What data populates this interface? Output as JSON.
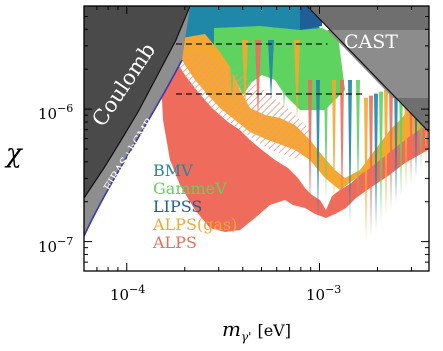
{
  "chart_data": {
    "type": "area",
    "xscale": "log",
    "yscale": "log",
    "xlim": [
      6e-05,
      0.0037
    ],
    "ylim": [
      6e-08,
      6e-06
    ],
    "xlabel_symbol": "m",
    "xlabel_sub": "γ'",
    "xlabel_unit": "[eV]",
    "ylabel": "χ",
    "xticks": [
      {
        "value": 0.0001,
        "base": "10",
        "exp": "−4"
      },
      {
        "value": 0.001,
        "base": "10",
        "exp": "−3"
      }
    ],
    "yticks": [
      {
        "value": 1e-06,
        "base": "10",
        "exp": "−6"
      },
      {
        "value": 1e-07,
        "base": "10",
        "exp": "−7"
      }
    ],
    "regions": [
      {
        "name": "Coulomb",
        "color": "#4a4a4a"
      },
      {
        "name": "FIRAS+hCMB",
        "color": "#8e8e8e",
        "edge_color": "#3a3aaa"
      },
      {
        "name": "CAST",
        "color": "#6f6f6f",
        "band_color": "#8c8c8c"
      }
    ],
    "series": [
      {
        "name": "BMV",
        "color": "#1f87a8"
      },
      {
        "name": "GammeV",
        "color": "#5fd35f"
      },
      {
        "name": "LIPSS",
        "color": "#1f5f95"
      },
      {
        "name": "ALPS(gas)",
        "color": "#f5a830"
      },
      {
        "name": "ALPS",
        "color": "#ef6c5c"
      }
    ],
    "dashed_lines": [
      {
        "y": 3.1e-06,
        "x_range": [
          0.00018,
          0.0011
        ]
      },
      {
        "y": 1.3e-06,
        "x_range": [
          0.00018,
          0.0017
        ]
      }
    ]
  }
}
